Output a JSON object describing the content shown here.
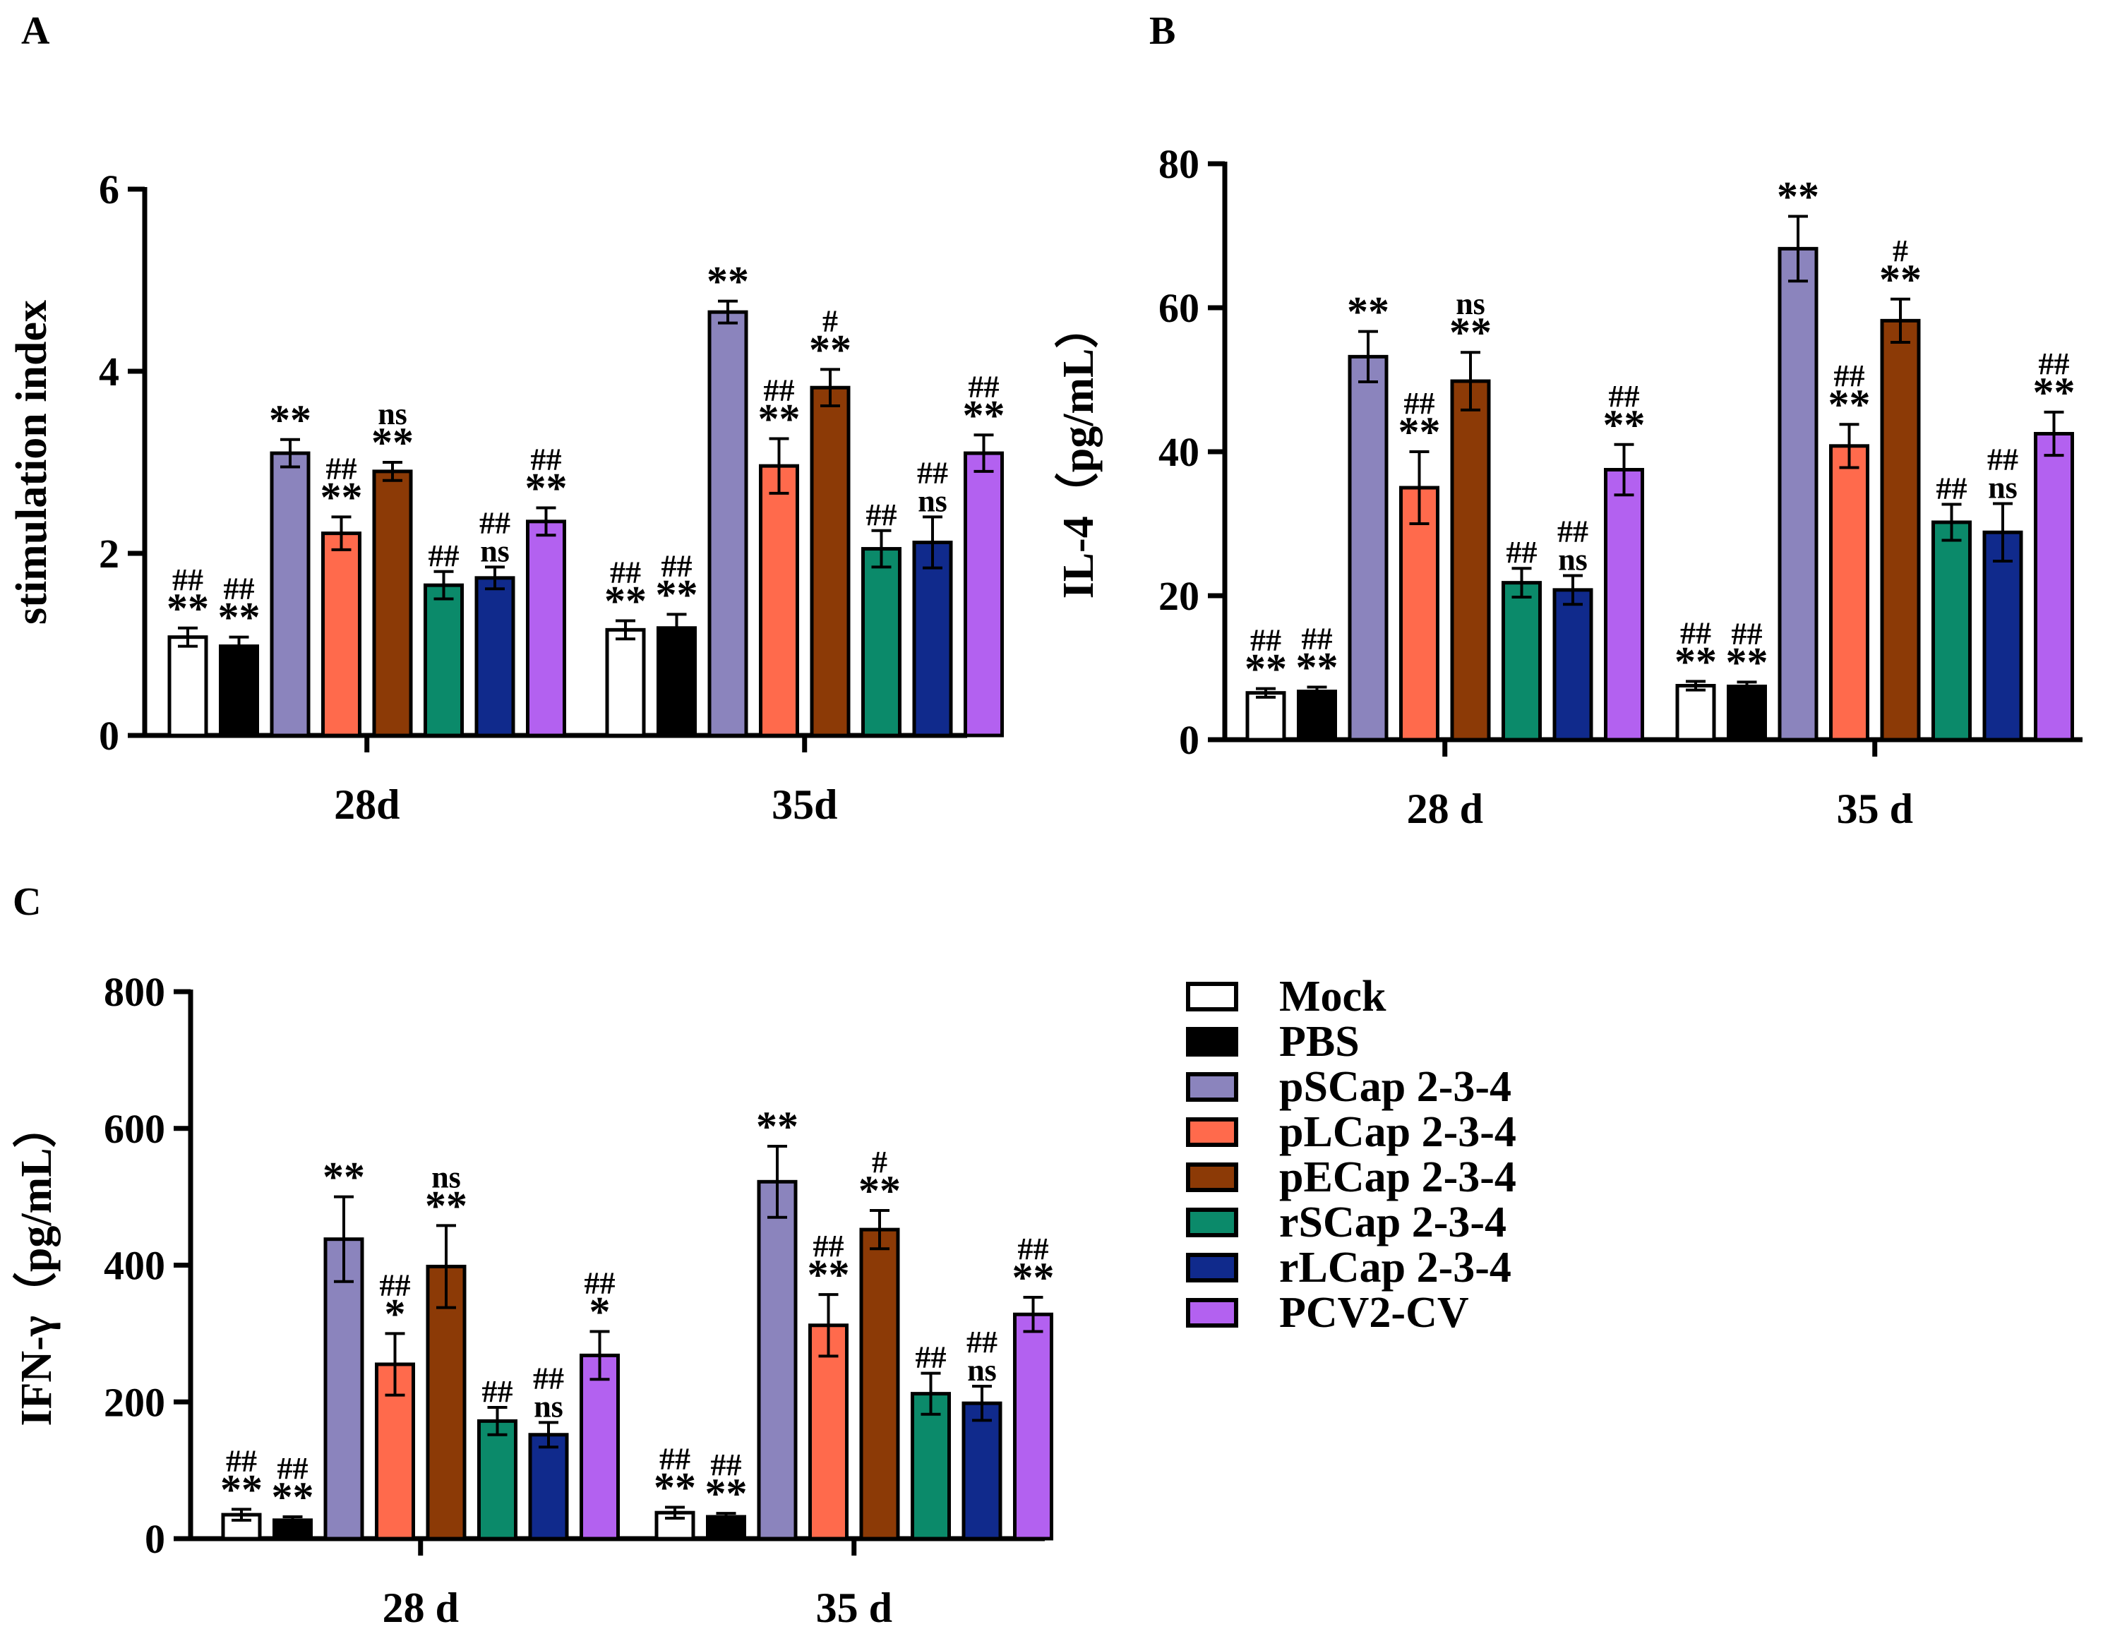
{
  "colors": {
    "Mock": "#ffffff",
    "PBS": "#000000",
    "pSCap 2-3-4": "#8b84bd",
    "pLCap 2-3-4": "#ff6a4c",
    "pECap 2-3-4": "#8c3a06",
    "rSCap 2-3-4": "#0b8a6a",
    "rLCap 2-3-4": "#102a8c",
    "PCV2-CV": "#b361f0"
  },
  "legend": {
    "items": [
      {
        "label": "Mock"
      },
      {
        "label": "PBS"
      },
      {
        "label": "pSCap 2-3-4"
      },
      {
        "label": "pLCap 2-3-4"
      },
      {
        "label": "pECap 2-3-4"
      },
      {
        "label": "rSCap 2-3-4"
      },
      {
        "label": "rLCap 2-3-4"
      },
      {
        "label": "PCV2-CV"
      }
    ]
  },
  "chart_data": [
    {
      "panel": "A",
      "type": "bar",
      "ylabel": "stimulation index",
      "ylim": [
        0,
        6
      ],
      "yticks": [
        0,
        2,
        4,
        6
      ],
      "categories": [
        "28d",
        "35d"
      ],
      "series": [
        {
          "name": "Mock",
          "values": [
            1.08,
            1.16
          ],
          "errors": [
            0.1,
            0.1
          ],
          "sig_top": [
            "##",
            "##"
          ],
          "sig_bottom": [
            "**",
            "**"
          ]
        },
        {
          "name": "PBS",
          "values": [
            0.98,
            1.18
          ],
          "errors": [
            0.1,
            0.15
          ],
          "sig_top": [
            "##",
            "##"
          ],
          "sig_bottom": [
            "**",
            "**"
          ]
        },
        {
          "name": "pSCap 2-3-4",
          "values": [
            3.1,
            4.65
          ],
          "errors": [
            0.15,
            0.12
          ],
          "sig_top": [
            "",
            ""
          ],
          "sig_bottom": [
            "**",
            "**"
          ]
        },
        {
          "name": "pLCap 2-3-4",
          "values": [
            2.22,
            2.96
          ],
          "errors": [
            0.18,
            0.3
          ],
          "sig_top": [
            "##",
            "##"
          ],
          "sig_bottom": [
            "**",
            "**"
          ]
        },
        {
          "name": "pECap 2-3-4",
          "values": [
            2.9,
            3.82
          ],
          "errors": [
            0.1,
            0.2
          ],
          "sig_top": [
            "ns",
            "#"
          ],
          "sig_bottom": [
            "**",
            "**"
          ]
        },
        {
          "name": "rSCap 2-3-4",
          "values": [
            1.65,
            2.05
          ],
          "errors": [
            0.15,
            0.2
          ],
          "sig_top": [
            "",
            ""
          ],
          "sig_bottom": [
            "##",
            "##"
          ]
        },
        {
          "name": "rLCap 2-3-4",
          "values": [
            1.73,
            2.12
          ],
          "errors": [
            0.12,
            0.28
          ],
          "sig_top": [
            "##",
            "##"
          ],
          "sig_bottom": [
            "ns",
            "ns"
          ]
        },
        {
          "name": "PCV2-CV",
          "values": [
            2.35,
            3.1
          ],
          "errors": [
            0.15,
            0.2
          ],
          "sig_top": [
            "##",
            "##"
          ],
          "sig_bottom": [
            "**",
            "**"
          ]
        }
      ]
    },
    {
      "panel": "B",
      "type": "bar",
      "ylabel": "IL-4（pg/mL）",
      "ylim": [
        0,
        80
      ],
      "yticks": [
        0,
        20,
        40,
        60,
        80
      ],
      "categories": [
        "28 d",
        "35 d"
      ],
      "series": [
        {
          "name": "Mock",
          "values": [
            6.5,
            7.5
          ],
          "errors": [
            0.6,
            0.6
          ],
          "sig_top": [
            "##",
            "##"
          ],
          "sig_bottom": [
            "**",
            "**"
          ]
        },
        {
          "name": "PBS",
          "values": [
            6.7,
            7.4
          ],
          "errors": [
            0.6,
            0.6
          ],
          "sig_top": [
            "##",
            "##"
          ],
          "sig_bottom": [
            "**",
            "**"
          ]
        },
        {
          "name": "pSCap 2-3-4",
          "values": [
            53.2,
            68.2
          ],
          "errors": [
            3.5,
            4.5
          ],
          "sig_top": [
            "",
            ""
          ],
          "sig_bottom": [
            "**",
            "**"
          ]
        },
        {
          "name": "pLCap 2-3-4",
          "values": [
            35,
            40.8
          ],
          "errors": [
            5,
            3
          ],
          "sig_top": [
            "##",
            "##"
          ],
          "sig_bottom": [
            "**",
            "**"
          ]
        },
        {
          "name": "pECap 2-3-4",
          "values": [
            49.8,
            58.2
          ],
          "errors": [
            4,
            3
          ],
          "sig_top": [
            "ns",
            "#"
          ],
          "sig_bottom": [
            "**",
            "**"
          ]
        },
        {
          "name": "rSCap 2-3-4",
          "values": [
            21.8,
            30.2
          ],
          "errors": [
            2,
            2.5
          ],
          "sig_top": [
            "",
            ""
          ],
          "sig_bottom": [
            "##",
            "##"
          ]
        },
        {
          "name": "rLCap 2-3-4",
          "values": [
            20.8,
            28.8
          ],
          "errors": [
            2,
            4
          ],
          "sig_top": [
            "##",
            "##"
          ],
          "sig_bottom": [
            "ns",
            "ns"
          ]
        },
        {
          "name": "PCV2-CV",
          "values": [
            37.5,
            42.5
          ],
          "errors": [
            3.5,
            3
          ],
          "sig_top": [
            "##",
            "##"
          ],
          "sig_bottom": [
            "**",
            "**"
          ]
        }
      ]
    },
    {
      "panel": "C",
      "type": "bar",
      "ylabel": "IFN-γ（pg/mL）",
      "ylim": [
        0,
        800
      ],
      "yticks": [
        0,
        200,
        400,
        600,
        800
      ],
      "categories": [
        "28 d",
        "35 d"
      ],
      "series": [
        {
          "name": "Mock",
          "values": [
            35,
            38
          ],
          "errors": [
            8,
            8
          ],
          "sig_top": [
            "##",
            "##"
          ],
          "sig_bottom": [
            "**",
            "**"
          ]
        },
        {
          "name": "PBS",
          "values": [
            27,
            32
          ],
          "errors": [
            5,
            5
          ],
          "sig_top": [
            "##",
            "##"
          ],
          "sig_bottom": [
            "**",
            "**"
          ]
        },
        {
          "name": "pSCap 2-3-4",
          "values": [
            438,
            522
          ],
          "errors": [
            62,
            52
          ],
          "sig_top": [
            "",
            ""
          ],
          "sig_bottom": [
            "**",
            "**"
          ]
        },
        {
          "name": "pLCap 2-3-4",
          "values": [
            255,
            312
          ],
          "errors": [
            45,
            45
          ],
          "sig_top": [
            "##",
            "##"
          ],
          "sig_bottom": [
            "*",
            "**"
          ]
        },
        {
          "name": "pECap 2-3-4",
          "values": [
            398,
            452
          ],
          "errors": [
            60,
            28
          ],
          "sig_top": [
            "ns",
            "#"
          ],
          "sig_bottom": [
            "**",
            "**"
          ]
        },
        {
          "name": "rSCap 2-3-4",
          "values": [
            172,
            212
          ],
          "errors": [
            20,
            30
          ],
          "sig_top": [
            "",
            ""
          ],
          "sig_bottom": [
            "##",
            "##"
          ]
        },
        {
          "name": "rLCap 2-3-4",
          "values": [
            152,
            198
          ],
          "errors": [
            18,
            25
          ],
          "sig_top": [
            "##",
            "##"
          ],
          "sig_bottom": [
            "ns",
            "ns"
          ]
        },
        {
          "name": "PCV2-CV",
          "values": [
            268,
            328
          ],
          "errors": [
            35,
            25
          ],
          "sig_top": [
            "##",
            "##"
          ],
          "sig_bottom": [
            "*",
            "**"
          ]
        }
      ]
    }
  ]
}
